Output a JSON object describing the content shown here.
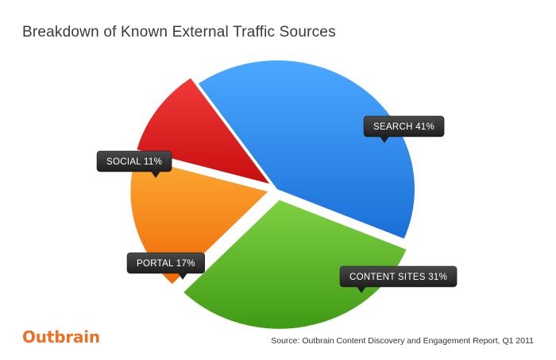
{
  "chart_data": {
    "type": "pie",
    "title": "Breakdown of Known External Traffic Sources",
    "slices": [
      {
        "name": "SEARCH",
        "value": 41,
        "label": "SEARCH 41%",
        "color": "#2c8ff0"
      },
      {
        "name": "CONTENT SITES",
        "value": 31,
        "label": "CONTENT SITES 31%",
        "color": "#5cbe2c"
      },
      {
        "name": "PORTAL",
        "value": 17,
        "label": "PORTAL 17%",
        "color": "#f9901a"
      },
      {
        "name": "SOCIAL",
        "value": 11,
        "label": "SOCIAL 11%",
        "color": "#e21b1b"
      }
    ]
  },
  "branding": {
    "logo_text": "Outbrain"
  },
  "footer": {
    "source": "Source: Outbrain Content Discovery and Engagement Report, Q1 2011"
  }
}
